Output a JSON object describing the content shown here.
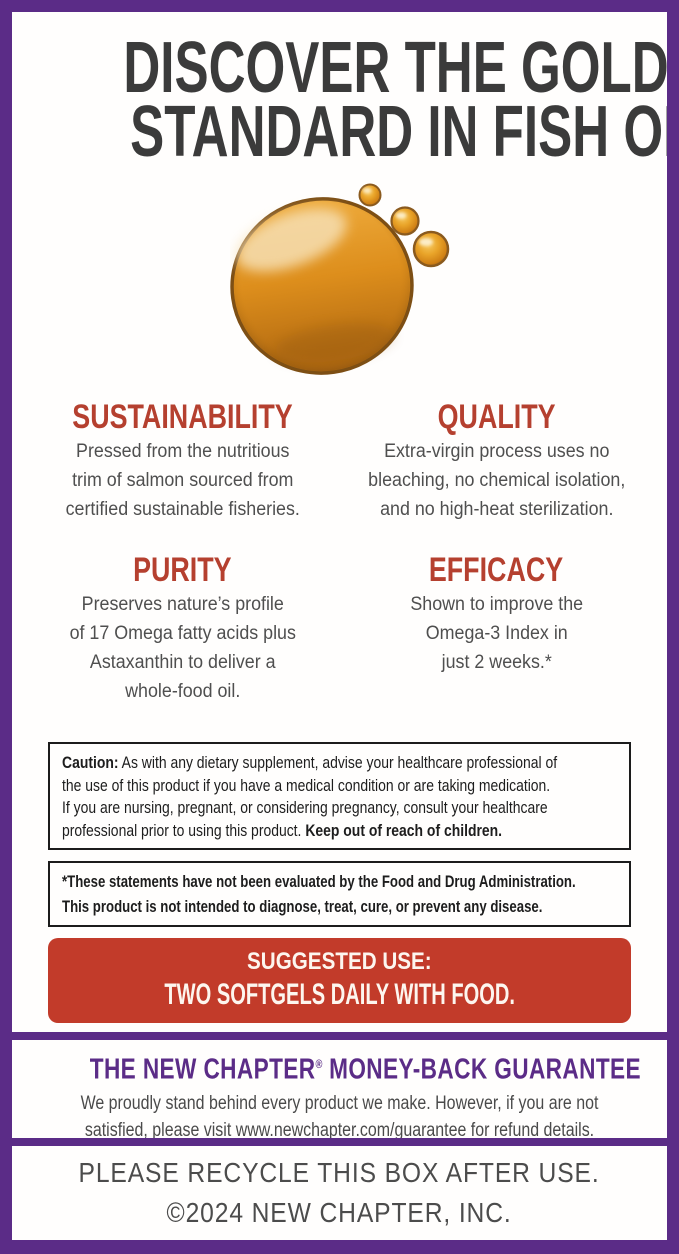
{
  "colors": {
    "frame_purple": "#5b2c87",
    "heading_red": "#b5402f",
    "banner_red": "#c23b2a",
    "headline_dark": "#3b3b3b",
    "body_gray": "#4f4f4f",
    "legal_ink": "#1d1d1d"
  },
  "headline": {
    "line1": "DISCOVER THE GOLD",
    "line2": "STANDARD IN FISH OIL"
  },
  "droplet": {
    "icon": "oil-droplet",
    "main_color": "#d98a18",
    "rim_color": "#7d4f15",
    "highlight_color": "#f7e3bb"
  },
  "features": [
    {
      "title": "SUSTAINABILITY",
      "lines": [
        "Pressed from the nutritious",
        "trim of salmon sourced from",
        "certified sustainable fisheries."
      ]
    },
    {
      "title": "QUALITY",
      "lines": [
        "Extra-virgin process uses no",
        "bleaching, no chemical isolation,",
        "and no high-heat sterilization."
      ]
    },
    {
      "title": "PURITY",
      "lines": [
        "Preserves nature’s profile",
        "of 17 Omega fatty acids plus",
        "Astaxanthin to deliver a",
        "whole-food oil."
      ]
    },
    {
      "title": "EFFICACY",
      "lines": [
        "Shown to improve the",
        "Omega-3 Index in",
        "just 2 weeks.*"
      ]
    }
  ],
  "caution": {
    "label": "Caution:",
    "l1": "As with any dietary supplement, advise your healthcare professional of",
    "l2": "the use of this product if you have a medical condition or are taking medication.",
    "l3": "If you are nursing, pregnant, or considering pregnancy, consult your healthcare",
    "l4": "professional prior to using this product.",
    "l4_bold": "Keep out of reach of children."
  },
  "fda": {
    "line1": "*These statements have not been evaluated by the Food and Drug Administration.",
    "line2": "This product is not intended to diagnose, treat, cure, or prevent any disease."
  },
  "suggested_use": {
    "title": "SUGGESTED USE:",
    "body": "TWO SOFTGELS DAILY WITH FOOD."
  },
  "guarantee": {
    "title_pre": "THE NEW CHAPTER",
    "title_reg": "®",
    "title_post": "MONEY-BACK GUARANTEE",
    "lines": [
      "We proudly stand behind every product we make. However, if you are not",
      "satisfied, please visit www.newchapter.com/guarantee for refund details."
    ]
  },
  "footer": {
    "line1": "PLEASE RECYCLE THIS BOX AFTER USE.",
    "line2": "©2024 NEW CHAPTER, INC."
  }
}
